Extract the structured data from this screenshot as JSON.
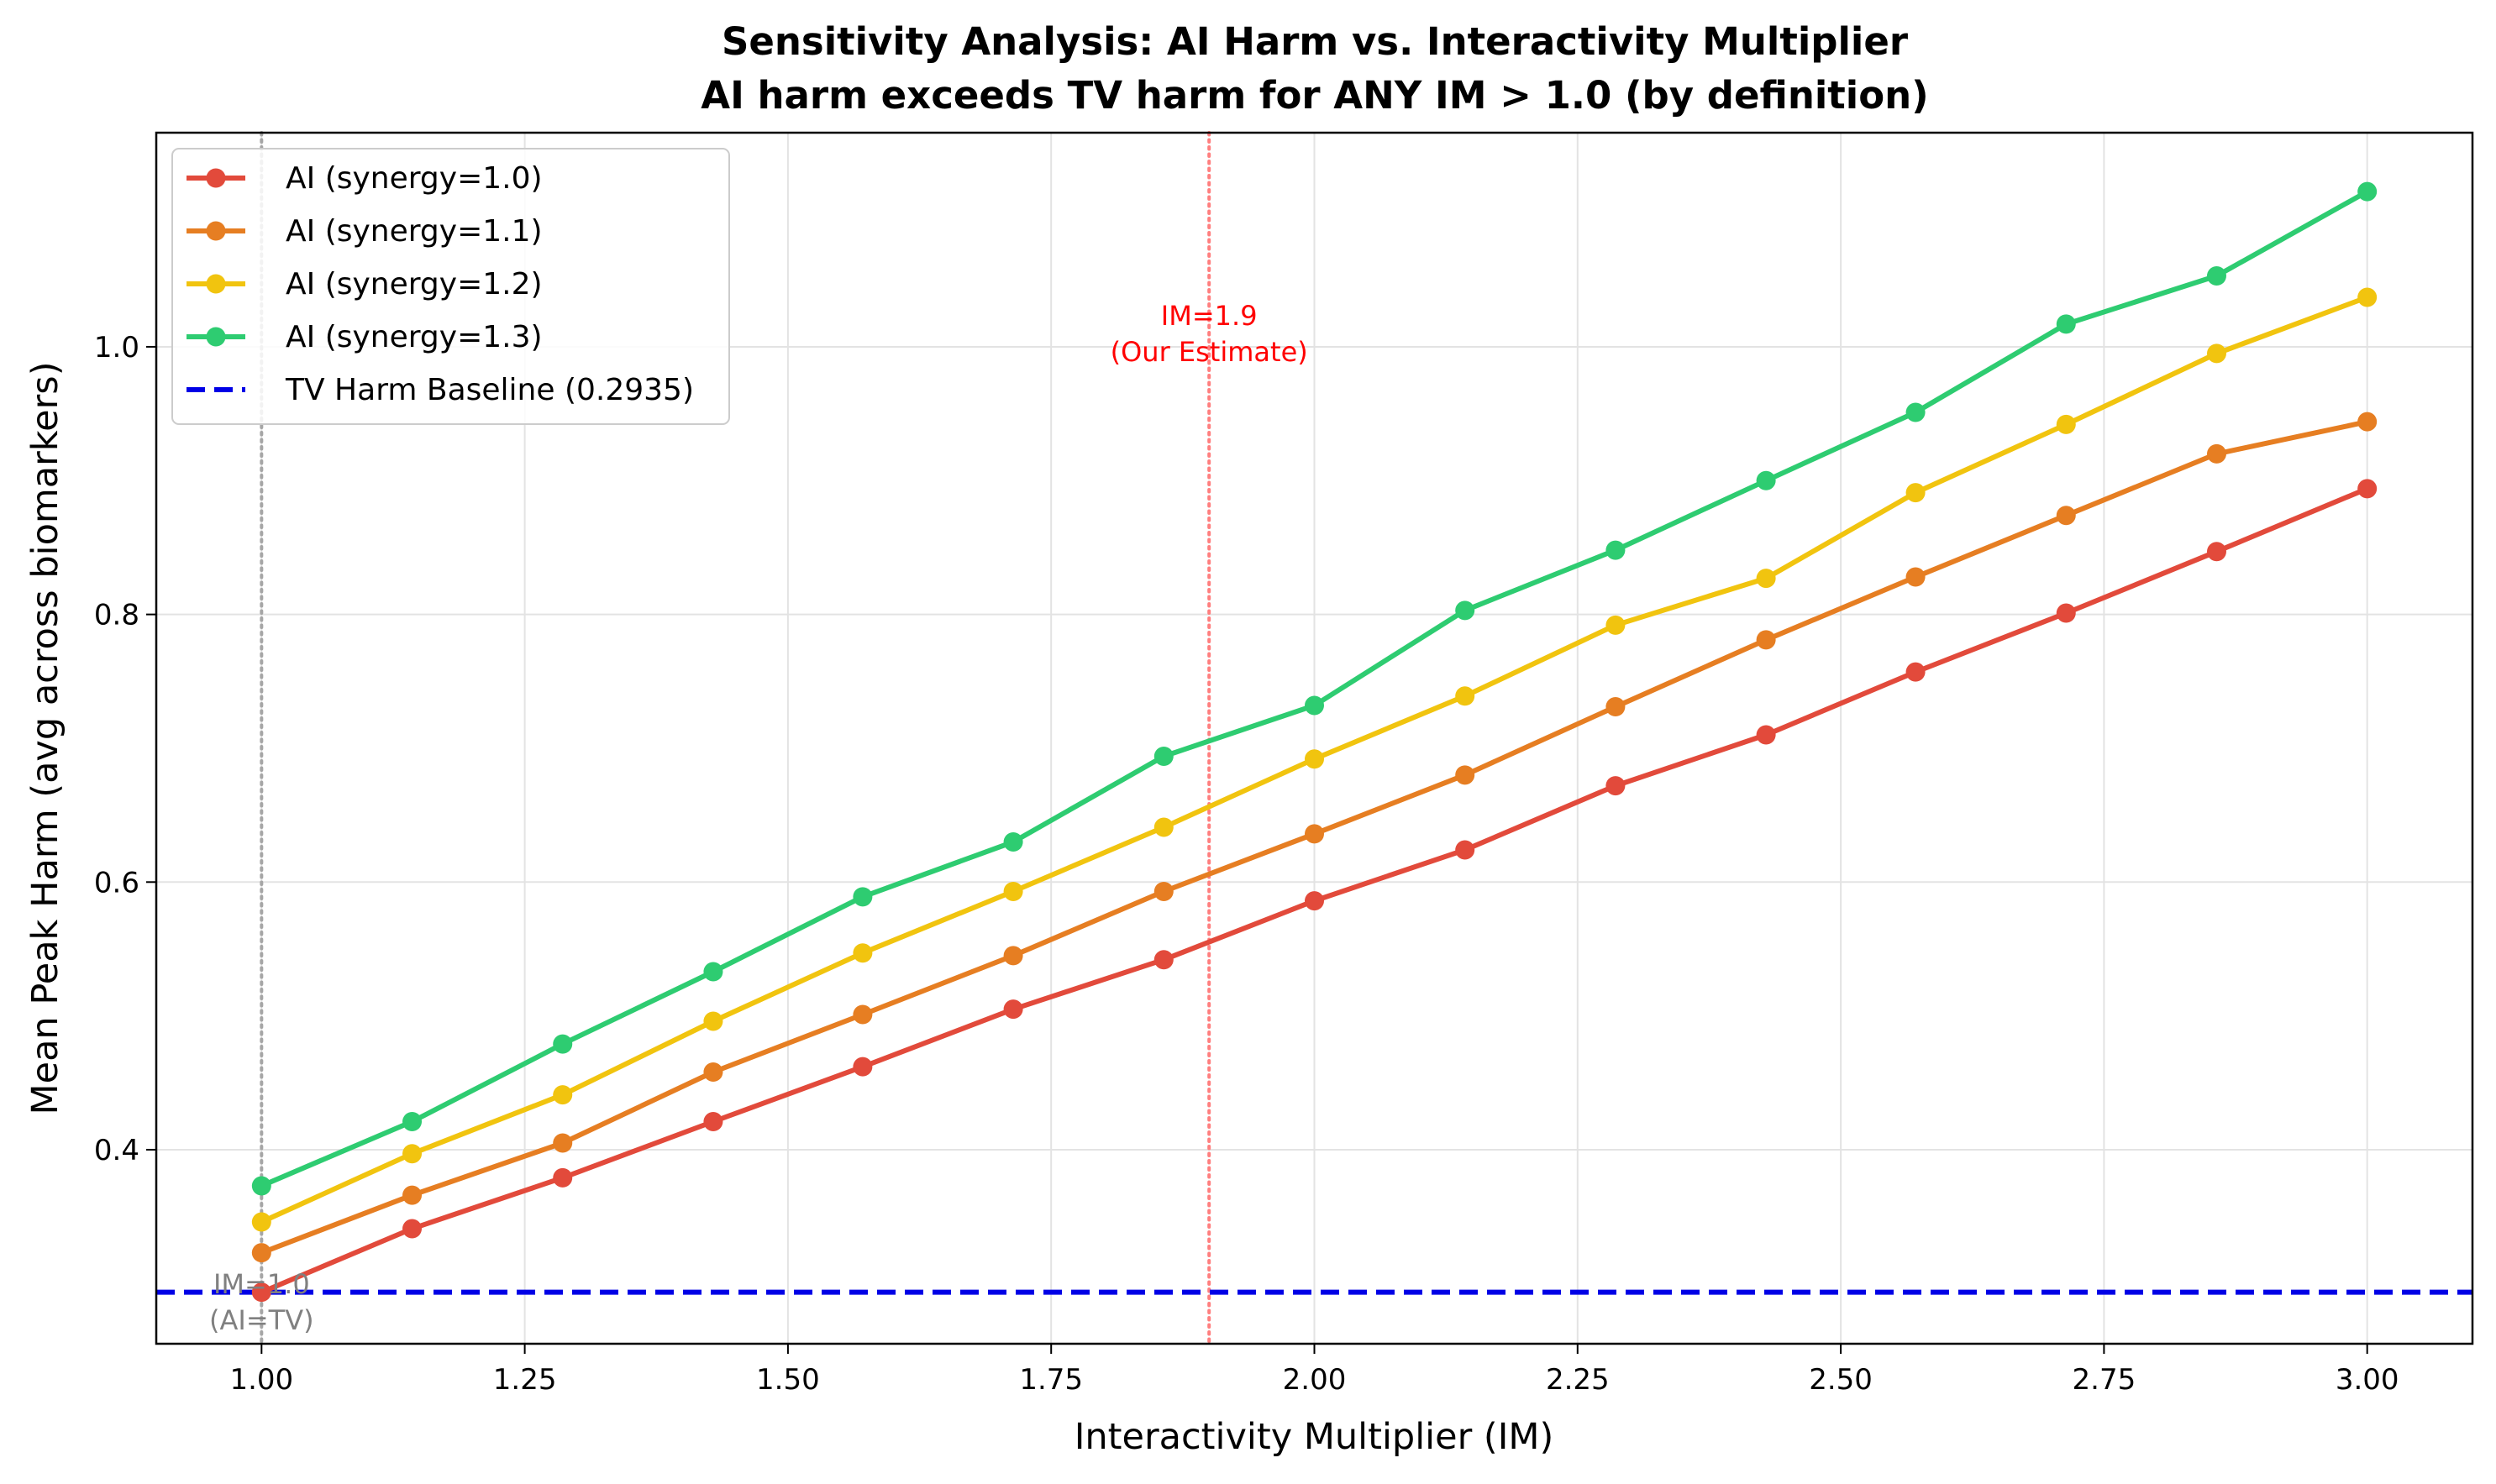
{
  "chart_data": {
    "type": "line",
    "title_lines": [
      "Sensitivity Analysis: AI Harm vs. Interactivity Multiplier",
      "AI harm exceeds TV harm for ANY IM > 1.0 (by definition)"
    ],
    "xlabel": "Interactivity Multiplier (IM)",
    "ylabel": "Mean Peak Harm (avg across biomarkers)",
    "xlim": [
      0.9,
      3.1
    ],
    "ylim": [
      0.255,
      1.16
    ],
    "x_ticks": [
      1.0,
      1.25,
      1.5,
      1.75,
      2.0,
      2.25,
      2.5,
      2.75,
      3.0
    ],
    "x_tick_labels": [
      "1.00",
      "1.25",
      "1.50",
      "1.75",
      "2.00",
      "2.25",
      "2.50",
      "2.75",
      "3.00"
    ],
    "y_ticks": [
      0.4,
      0.6,
      0.8,
      1.0
    ],
    "y_tick_labels": [
      "0.4",
      "0.6",
      "0.8",
      "1.0"
    ],
    "grid": true,
    "legend_position": "top-left",
    "x": [
      1.0,
      1.143,
      1.286,
      1.429,
      1.571,
      1.714,
      1.857,
      2.0,
      2.143,
      2.286,
      2.429,
      2.571,
      2.714,
      2.857,
      3.0
    ],
    "series": [
      {
        "name": "AI (synergy=1.0)",
        "color": "#e24a3b",
        "values": [
          0.2935,
          0.341,
          0.379,
          0.421,
          0.462,
          0.505,
          0.542,
          0.586,
          0.624,
          0.672,
          0.71,
          0.757,
          0.801,
          0.847,
          0.894
        ]
      },
      {
        "name": "AI (synergy=1.1)",
        "color": "#e67e22",
        "values": [
          0.323,
          0.366,
          0.405,
          0.458,
          0.501,
          0.545,
          0.593,
          0.636,
          0.68,
          0.731,
          0.781,
          0.828,
          0.874,
          0.92,
          0.944
        ]
      },
      {
        "name": "AI (synergy=1.2)",
        "color": "#f1c40f",
        "values": [
          0.346,
          0.397,
          0.441,
          0.496,
          0.547,
          0.593,
          0.641,
          0.692,
          0.739,
          0.792,
          0.827,
          0.891,
          0.942,
          0.995,
          1.037
        ]
      },
      {
        "name": "AI (synergy=1.3)",
        "color": "#2ecc71",
        "values": [
          0.373,
          0.421,
          0.479,
          0.533,
          0.589,
          0.63,
          0.694,
          0.732,
          0.803,
          0.848,
          0.9,
          0.951,
          1.017,
          1.053,
          1.116
        ]
      }
    ],
    "baseline": {
      "name": "TV Harm Baseline (0.2935)",
      "value": 0.2935,
      "color": "#0000e6"
    },
    "annotations": [
      {
        "name": "im-estimate",
        "x": 1.9,
        "lines": [
          "IM=1.9",
          "(Our Estimate)"
        ],
        "color": "#ff0000",
        "line_color": "#ff7f7f"
      },
      {
        "name": "im-one",
        "x": 1.0,
        "lines": [
          "IM=1.0",
          "(AI=TV)"
        ],
        "color": "#808080",
        "line_color": "#a6a6a6"
      }
    ]
  }
}
